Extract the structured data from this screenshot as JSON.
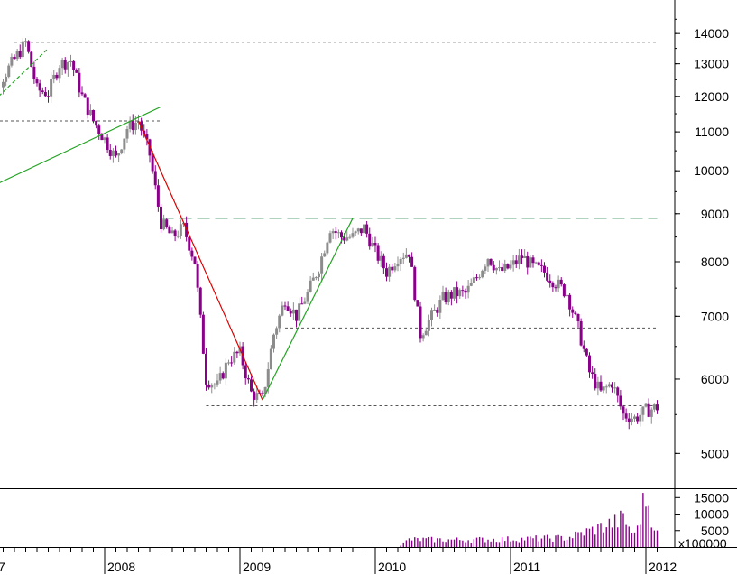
{
  "chart_data": [
    {
      "type": "candlestick",
      "title": "",
      "yscale": "log",
      "ylim": [
        4600,
        15000
      ],
      "y_ticks": [
        "14000",
        "13000",
        "12000",
        "11000",
        "10000",
        "9000",
        "8000",
        "7000",
        "6000",
        "5000"
      ],
      "x_ticks": [
        "7",
        "2008",
        "2009",
        "2010",
        "2011",
        "2012"
      ],
      "x_range": [
        "2007-02",
        "2012-02"
      ],
      "grid": false,
      "colors": {
        "up": "#8c8c8c",
        "down": "#8b008b",
        "volume": "#8b008b"
      },
      "horizontal_levels": [
        {
          "value": 13700,
          "style": "dotted",
          "color": "#999999",
          "from": "2007-05",
          "to": "2012-02"
        },
        {
          "value": 11300,
          "style": "dotted",
          "color": "#555555",
          "from": "2007-02",
          "to": "2008-06"
        },
        {
          "value": 8900,
          "style": "dashed",
          "color": "#2e8b57",
          "from": "2008-06",
          "to": "2012-02"
        },
        {
          "value": 6800,
          "style": "dotted",
          "color": "#555555",
          "from": "2009-05",
          "to": "2012-02"
        },
        {
          "value": 5620,
          "style": "dotted",
          "color": "#555555",
          "from": "2008-10",
          "to": "2012-02"
        }
      ],
      "trendlines": [
        {
          "color": "#22a322",
          "style": "solid",
          "from": [
            "2007-02",
            9500
          ],
          "to": [
            "2008-06",
            11700
          ]
        },
        {
          "color": "#22a322",
          "style": "dashed",
          "from": [
            "2007-02",
            11500
          ],
          "to": [
            "2007-08",
            13500
          ]
        },
        {
          "color": "#dd0000",
          "style": "solid",
          "from": [
            "2008-04",
            11300
          ],
          "to": [
            "2009-03",
            5700
          ]
        },
        {
          "color": "#22a322",
          "style": "solid",
          "from": [
            "2009-03",
            5700
          ],
          "to": [
            "2009-11",
            8900
          ]
        }
      ],
      "price_anchors": [
        [
          "2007-02",
          11600
        ],
        [
          "2007-04",
          12600
        ],
        [
          "2007-06",
          13700
        ],
        [
          "2007-07",
          12200
        ],
        [
          "2007-08",
          12100
        ],
        [
          "2007-09",
          13000
        ],
        [
          "2007-10",
          13100
        ],
        [
          "2007-11",
          12000
        ],
        [
          "2007-12",
          11300
        ],
        [
          "2008-01",
          10800
        ],
        [
          "2008-02",
          10300
        ],
        [
          "2008-03",
          11100
        ],
        [
          "2008-04",
          11300
        ],
        [
          "2008-05",
          10400
        ],
        [
          "2008-06",
          8800
        ],
        [
          "2008-07",
          8500
        ],
        [
          "2008-08",
          8700
        ],
        [
          "2008-09",
          8000
        ],
        [
          "2008-10",
          6000
        ],
        [
          "2008-11",
          5900
        ],
        [
          "2008-12",
          6300
        ],
        [
          "2009-01",
          6400
        ],
        [
          "2009-02",
          5800
        ],
        [
          "2009-03",
          5700
        ],
        [
          "2009-04",
          6700
        ],
        [
          "2009-05",
          7300
        ],
        [
          "2009-06",
          7000
        ],
        [
          "2009-07",
          7400
        ],
        [
          "2009-08",
          7900
        ],
        [
          "2009-09",
          8700
        ],
        [
          "2009-10",
          8500
        ],
        [
          "2009-11",
          8500
        ],
        [
          "2009-12",
          8700
        ],
        [
          "2010-01",
          8200
        ],
        [
          "2010-02",
          7800
        ],
        [
          "2010-03",
          8100
        ],
        [
          "2010-04",
          8200
        ],
        [
          "2010-05",
          6700
        ],
        [
          "2010-06",
          7000
        ],
        [
          "2010-07",
          7300
        ],
        [
          "2010-08",
          7400
        ],
        [
          "2010-09",
          7400
        ],
        [
          "2010-10",
          7700
        ],
        [
          "2010-11",
          8100
        ],
        [
          "2010-12",
          7800
        ],
        [
          "2011-01",
          7900
        ],
        [
          "2011-02",
          8100
        ],
        [
          "2011-03",
          7900
        ],
        [
          "2011-04",
          7800
        ],
        [
          "2011-05",
          7600
        ],
        [
          "2011-06",
          7400
        ],
        [
          "2011-07",
          6800
        ],
        [
          "2011-08",
          6100
        ],
        [
          "2011-09",
          5800
        ],
        [
          "2011-10",
          5950
        ],
        [
          "2011-11",
          5500
        ],
        [
          "2011-12",
          5450
        ],
        [
          "2012-01",
          5550
        ],
        [
          "2012-02",
          5600
        ]
      ]
    },
    {
      "type": "bar",
      "title": "",
      "unit_label": "x100000",
      "y_ticks": [
        "15000",
        "10000",
        "5000"
      ],
      "ylim": [
        0,
        17000
      ],
      "volume_anchors": [
        [
          "2007-02",
          0
        ],
        [
          "2010-03",
          0
        ],
        [
          "2010-04",
          2300
        ],
        [
          "2010-08",
          2200
        ],
        [
          "2011-01",
          2400
        ],
        [
          "2011-06",
          2800
        ],
        [
          "2011-09",
          6000
        ],
        [
          "2011-11",
          8500
        ],
        [
          "2011-12",
          3500
        ],
        [
          "2012-01",
          15500
        ],
        [
          "2012-02",
          4000
        ]
      ]
    }
  ]
}
